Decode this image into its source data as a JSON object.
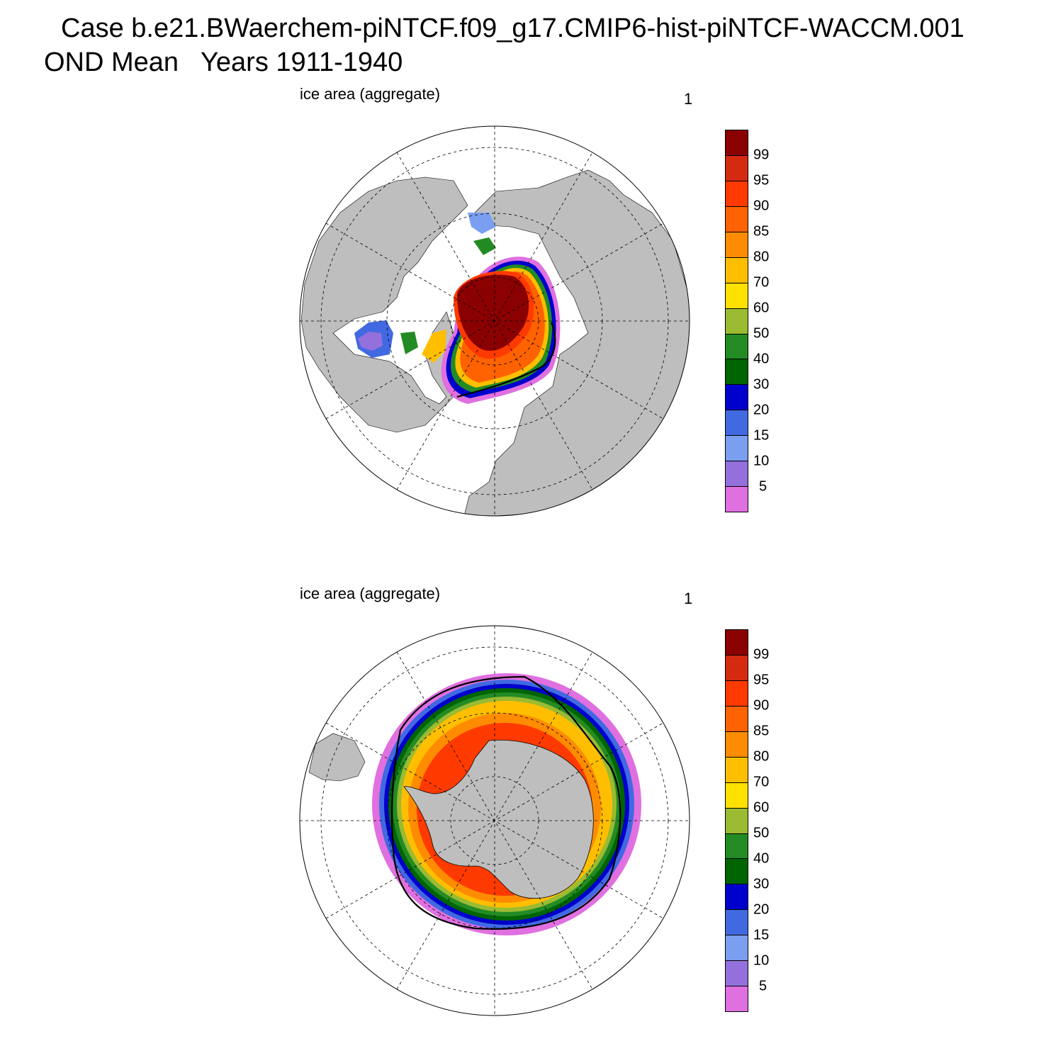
{
  "title": {
    "line1": "Case b.e21.BWaerchem-piNTCF.f09_g17.CMIP6-hist-piNTCF-WACCM.001",
    "line2": "OND Mean   Years 1911-1940"
  },
  "panels": [
    {
      "id": "north",
      "label": "ice area  (aggregate)",
      "number": "1",
      "hemisphere": "Northern"
    },
    {
      "id": "south",
      "label": "ice area  (aggregate)",
      "number": "1",
      "hemisphere": "Southern"
    }
  ],
  "colorbar": {
    "labels": [
      "99",
      "95",
      "90",
      "85",
      "80",
      "70",
      "60",
      "50",
      "40",
      "30",
      "20",
      "15",
      "10",
      "5"
    ],
    "colors": [
      "#8b0000",
      "#d42a10",
      "#ff3a00",
      "#ff6200",
      "#ff8c00",
      "#ffbf00",
      "#ffe100",
      "#9abb32",
      "#238b23",
      "#006400",
      "#0000cd",
      "#4169e1",
      "#7b9ff0",
      "#9370db",
      "#e070e0"
    ]
  },
  "colors": {
    "land": "#bebebe",
    "ocean": "#ffffff",
    "contour": "#000000"
  }
}
